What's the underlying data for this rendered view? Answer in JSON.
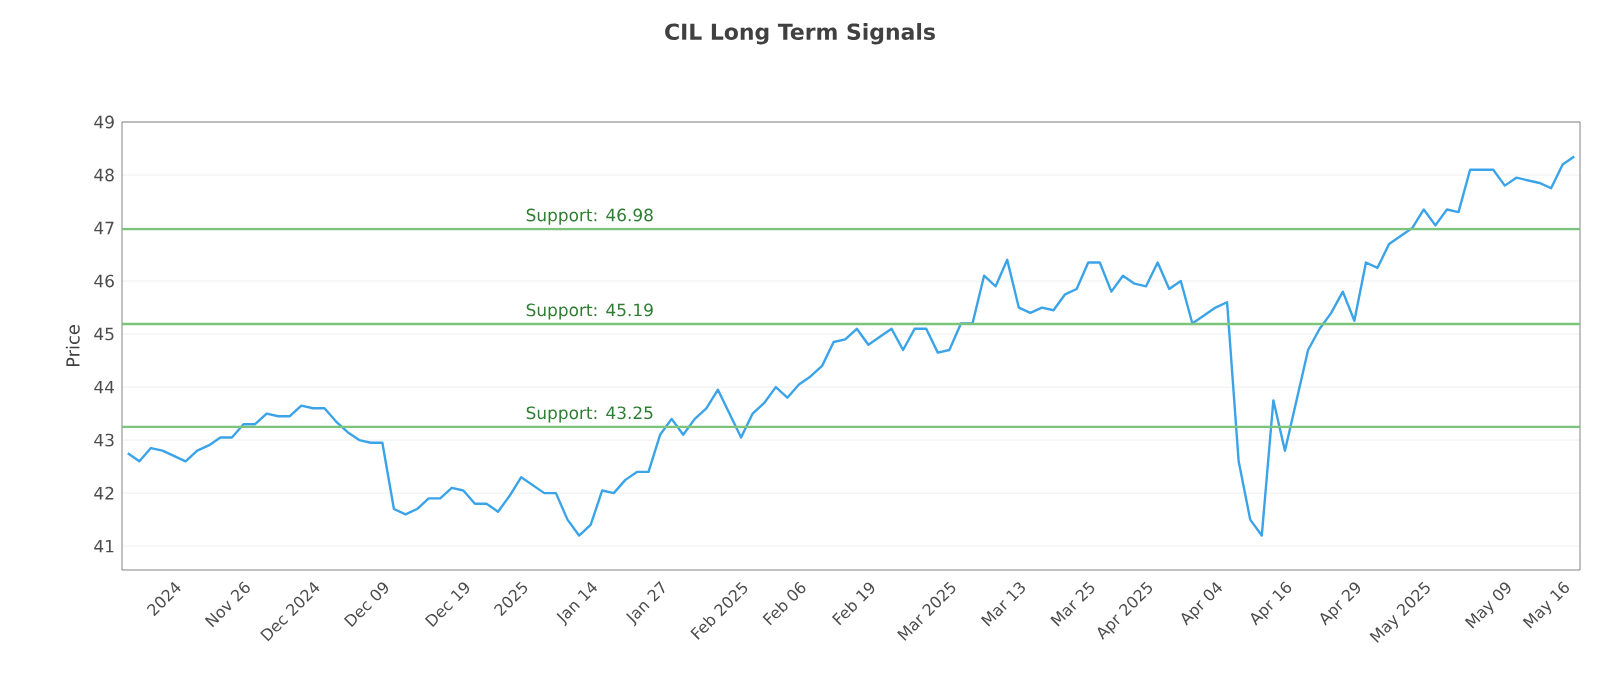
{
  "chart_data": {
    "type": "line",
    "title": "CIL Long Term Signals",
    "ylabel": "Price",
    "categories": [
      null,
      null,
      null,
      null,
      "2024",
      null,
      null,
      null,
      null,
      null,
      "Nov 26",
      null,
      null,
      null,
      null,
      null,
      "Dec 2024",
      null,
      null,
      null,
      null,
      null,
      "Dec 09",
      null,
      null,
      null,
      null,
      null,
      null,
      "Dec 19",
      null,
      null,
      null,
      null,
      "2025",
      null,
      null,
      null,
      null,
      null,
      "Jan 14",
      null,
      null,
      null,
      null,
      null,
      "Jan 27",
      null,
      null,
      null,
      null,
      null,
      null,
      "Feb 2025",
      null,
      null,
      null,
      null,
      "Feb 06",
      null,
      null,
      null,
      null,
      null,
      "Feb 19",
      null,
      null,
      null,
      null,
      null,
      null,
      "Mar 2025",
      null,
      null,
      null,
      null,
      null,
      "Mar 13",
      null,
      null,
      null,
      null,
      null,
      "Mar 25",
      null,
      null,
      null,
      null,
      "Apr 2025",
      null,
      null,
      null,
      null,
      null,
      "Apr 04",
      null,
      null,
      null,
      null,
      null,
      "Apr 16",
      null,
      null,
      null,
      null,
      null,
      "Apr 29",
      null,
      null,
      null,
      null,
      null,
      "May 2025",
      null,
      null,
      null,
      null,
      null,
      null,
      "May 09",
      null,
      null,
      null,
      null,
      "May 16",
      null
    ],
    "series": [
      {
        "color": "#3ba3e8",
        "values": [
          42.75,
          42.6,
          42.85,
          42.8,
          42.7,
          42.6,
          42.8,
          42.9,
          43.05,
          43.05,
          43.3,
          43.3,
          43.5,
          43.45,
          43.45,
          43.65,
          43.6,
          43.6,
          43.35,
          43.15,
          43.0,
          42.95,
          42.95,
          41.7,
          41.6,
          41.7,
          41.9,
          41.9,
          42.1,
          42.05,
          41.8,
          41.8,
          41.65,
          41.95,
          42.3,
          42.15,
          42.0,
          42.0,
          41.5,
          41.2,
          41.4,
          42.05,
          42.0,
          42.25,
          42.4,
          42.4,
          43.1,
          43.4,
          43.1,
          43.4,
          43.6,
          43.95,
          43.5,
          43.05,
          43.5,
          43.7,
          44.0,
          43.8,
          44.05,
          44.2,
          44.4,
          44.85,
          44.9,
          45.1,
          44.8,
          44.95,
          45.1,
          44.7,
          45.1,
          45.1,
          44.65,
          44.7,
          45.2,
          45.2,
          46.1,
          45.9,
          46.4,
          45.5,
          45.4,
          45.5,
          45.45,
          45.75,
          45.85,
          46.35,
          46.35,
          45.8,
          46.1,
          45.95,
          45.9,
          46.35,
          45.85,
          46.0,
          45.2,
          45.35,
          45.5,
          45.6,
          42.6,
          41.5,
          41.2,
          43.75,
          42.8,
          43.75,
          44.7,
          45.1,
          45.4,
          45.8,
          45.25,
          46.35,
          46.25,
          46.7,
          46.85,
          47.0,
          47.35,
          47.05,
          47.35,
          47.3,
          48.1,
          48.1,
          48.1,
          47.8,
          47.95,
          47.9,
          47.85,
          47.75,
          48.2,
          48.35
        ]
      }
    ],
    "ylim": [
      40.55,
      49
    ],
    "yticks": [
      41,
      42,
      43,
      44,
      45,
      46,
      47,
      48,
      49
    ],
    "grid": "y",
    "ref_lines": [
      {
        "axis": "y",
        "value": 46.98,
        "label": "Support: 46.98",
        "color": "#7cc47c"
      },
      {
        "axis": "y",
        "value": 45.19,
        "label": "Support: 45.19",
        "color": "#7cc47c"
      },
      {
        "axis": "y",
        "value": 43.25,
        "label": "Support: 43.25",
        "color": "#7cc47c"
      }
    ]
  }
}
